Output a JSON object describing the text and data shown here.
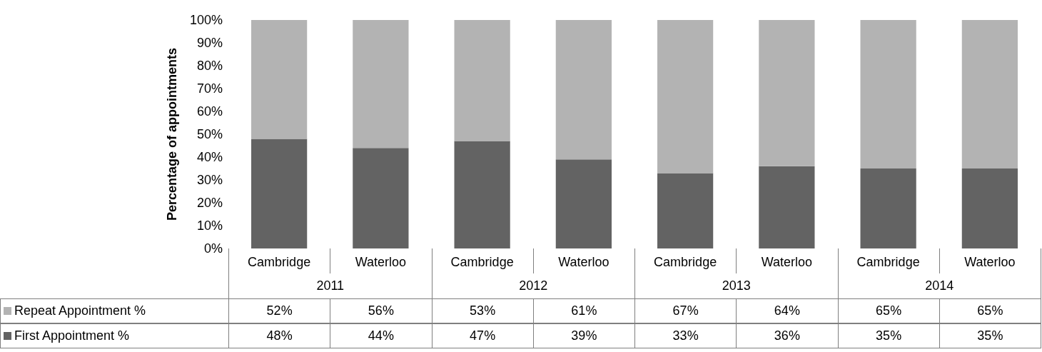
{
  "chart_data": {
    "type": "bar",
    "stacked": true,
    "ylabel": "Percentage of appointments",
    "categories": [
      "Cambridge",
      "Waterloo",
      "Cambridge",
      "Waterloo",
      "Cambridge",
      "Waterloo",
      "Cambridge",
      "Waterloo"
    ],
    "annotations": [
      "2011",
      "2012",
      "2013",
      "2014"
    ],
    "series": [
      {
        "name": "First Appointment %",
        "color": "#636363",
        "values": [
          48,
          44,
          47,
          39,
          33,
          36,
          35,
          35
        ],
        "value_labels": [
          "48%",
          "44%",
          "47%",
          "39%",
          "33%",
          "36%",
          "35%",
          "35%"
        ]
      },
      {
        "name": "Repeat Appointment %",
        "color": "#b3b3b3",
        "values": [
          52,
          56,
          53,
          61,
          67,
          64,
          65,
          65
        ],
        "value_labels": [
          "52%",
          "56%",
          "53%",
          "61%",
          "67%",
          "64%",
          "65%",
          "65%"
        ]
      }
    ],
    "ylim": [
      0,
      100
    ],
    "yticks": [
      {
        "value": 0,
        "label": "0%"
      },
      {
        "value": 10,
        "label": "10%"
      },
      {
        "value": 20,
        "label": "20%"
      },
      {
        "value": 30,
        "label": "30%"
      },
      {
        "value": 40,
        "label": "40%"
      },
      {
        "value": 50,
        "label": "50%"
      },
      {
        "value": 60,
        "label": "60%"
      },
      {
        "value": 70,
        "label": "70%"
      },
      {
        "value": 80,
        "label": "80%"
      },
      {
        "value": 90,
        "label": "90%"
      },
      {
        "value": 100,
        "label": "100%"
      }
    ],
    "grid": false,
    "legend": "bottom left"
  }
}
